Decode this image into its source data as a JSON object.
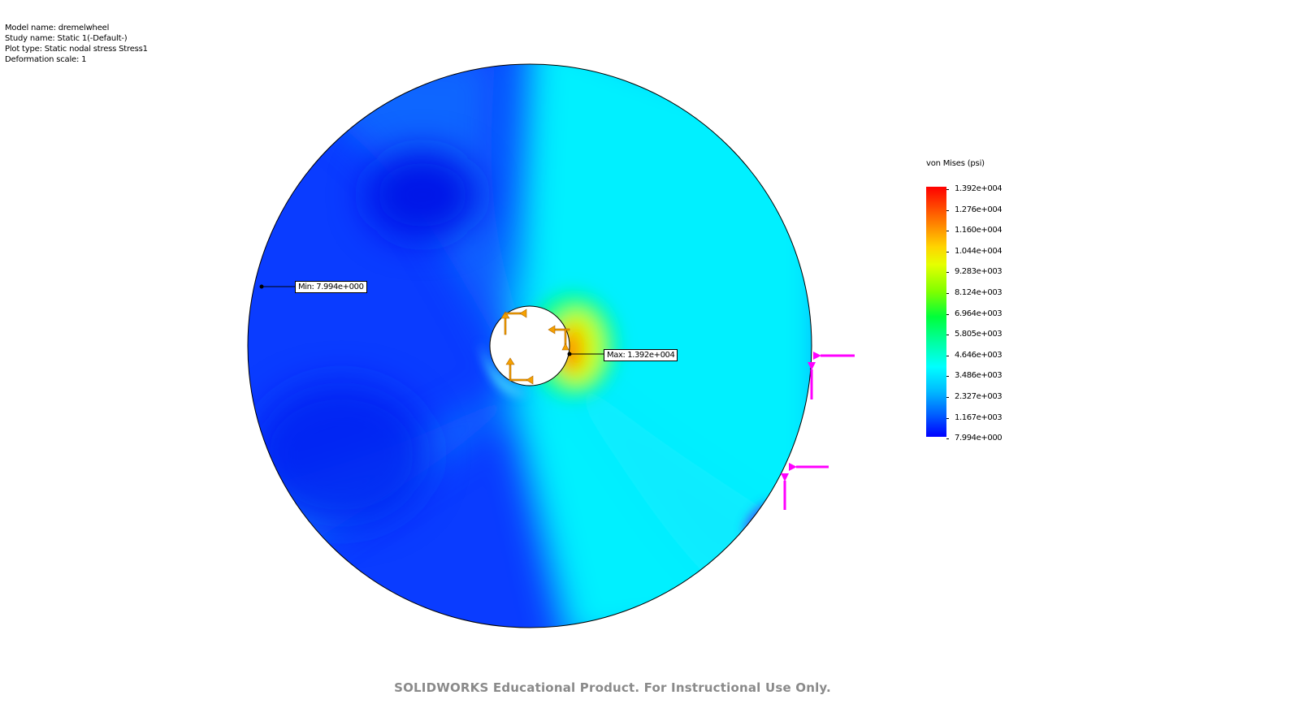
{
  "info": {
    "model": "Model name: dremelwheel",
    "study": "Study name: Static 1(-Default-)",
    "plot_type": "Plot type: Static nodal stress Stress1",
    "deformation": "Deformation scale: 1"
  },
  "annotations": {
    "min": "Min: 7.994e+000",
    "max": "Max: 1.392e+004"
  },
  "legend": {
    "title": "von Mises (psi)",
    "labels": [
      "1.392e+004",
      "1.276e+004",
      "1.160e+004",
      "1.044e+004",
      "9.283e+003",
      "8.124e+003",
      "6.964e+003",
      "5.805e+003",
      "4.646e+003",
      "3.486e+003",
      "2.327e+003",
      "1.167e+003",
      "7.994e+000"
    ]
  },
  "colors": {
    "min_blue": "#0000ff",
    "cyan": "#00ffff",
    "max_red": "#ff0000",
    "fixture_orange": "#f5a000",
    "load_magenta": "#ff00ff"
  },
  "icons": {
    "fixture": "fixed-geometry-arrow-icon",
    "load": "force-arrow-icon"
  },
  "watermark": "SOLIDWORKS Educational Product. For Instructional Use Only."
}
